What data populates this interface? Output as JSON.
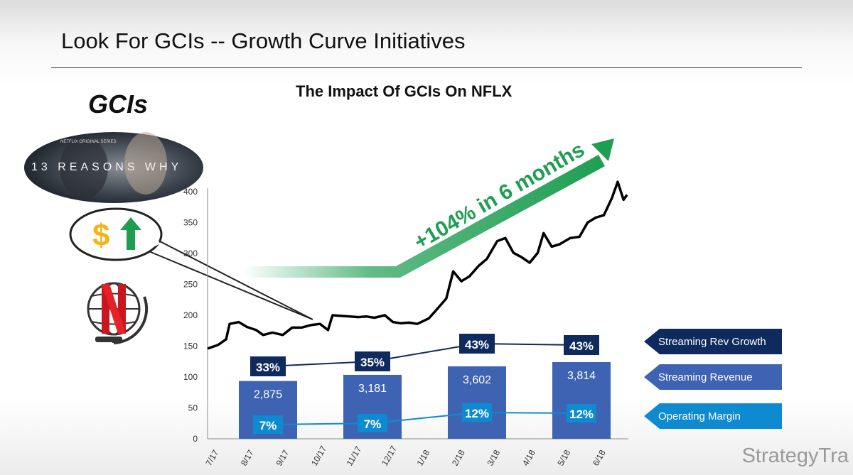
{
  "slide": {
    "title": "Look For GCIs -- Growth Curve Initiatives",
    "side_heading": "GCIs",
    "poster_text": "13 REASONS WHY",
    "poster_top_text": "NETFLIX ORIGINAL SERIES",
    "dollar_sign": "$",
    "logo": "StrategyTra"
  },
  "colors": {
    "green": "#1f9e52",
    "navy": "#0f2a5c",
    "bar_blue": "#3e63b2",
    "cyan": "#0e8bd0",
    "price_line": "#000000"
  },
  "icons": [
    "dollar-icon",
    "up-arrow-icon",
    "netflix-globe-icon"
  ],
  "annotation": "+104% in 6 months",
  "chart_data": {
    "type": "line",
    "title": "The Impact Of GCIs On NFLX",
    "xlabel": "",
    "ylabel": "",
    "x_tick_labels": [
      "7/17",
      "8/17",
      "9/17",
      "10/17",
      "11/17",
      "12/17",
      "1/18",
      "2/18",
      "3/18",
      "4/18",
      "5/18",
      "6/18"
    ],
    "ylim": [
      0,
      400
    ],
    "yticks": [
      0,
      50,
      100,
      150,
      200,
      250,
      300,
      350,
      400
    ],
    "grid": false,
    "series": [
      {
        "values": [
          [
            "7/1/17",
            146
          ],
          [
            "7/10/17",
            152
          ],
          [
            "7/17/17",
            161
          ],
          [
            "7/20/17",
            186
          ],
          [
            "7/28/17",
            189
          ],
          [
            "8/4/17",
            181
          ],
          [
            "8/12/17",
            176
          ],
          [
            "8/18/17",
            168
          ],
          [
            "8/26/17",
            172
          ],
          [
            "9/4/17",
            168
          ],
          [
            "9/12/17",
            180
          ],
          [
            "9/20/17",
            180
          ],
          [
            "9/28/17",
            184
          ],
          [
            "10/6/17",
            186
          ],
          [
            "10/13/17",
            176
          ],
          [
            "10/16/17",
            195
          ],
          [
            "10/17/17",
            200
          ],
          [
            "10/24/17",
            199
          ],
          [
            "11/1/17",
            198
          ],
          [
            "11/8/17",
            197
          ],
          [
            "11/15/17",
            198
          ],
          [
            "11/22/17",
            196
          ],
          [
            "12/1/17",
            200
          ],
          [
            "12/8/17",
            189
          ],
          [
            "12/15/17",
            187
          ],
          [
            "12/22/17",
            188
          ],
          [
            "12/29/17",
            186
          ],
          [
            "1/8/18",
            195
          ],
          [
            "1/16/18",
            212
          ],
          [
            "1/23/18",
            227
          ],
          [
            "1/29/18",
            271
          ],
          [
            "2/5/18",
            255
          ],
          [
            "2/12/18",
            263
          ],
          [
            "2/20/18",
            280
          ],
          [
            "2/27/18",
            291
          ],
          [
            "3/8/18",
            320
          ],
          [
            "3/15/18",
            325
          ],
          [
            "3/22/18",
            301
          ],
          [
            "3/29/18",
            294
          ],
          [
            "4/5/18",
            285
          ],
          [
            "4/12/18",
            301
          ],
          [
            "4/17/18",
            333
          ],
          [
            "4/24/18",
            311
          ],
          [
            "5/1/18",
            315
          ],
          [
            "5/10/18",
            325
          ],
          [
            "5/18/18",
            327
          ],
          [
            "5/25/18",
            350
          ],
          [
            "6/1/18",
            358
          ],
          [
            "6/8/18",
            362
          ],
          [
            "6/15/18",
            390
          ],
          [
            "6/20/18",
            416
          ],
          [
            "6/25/18",
            387
          ],
          [
            "6/28/18",
            395
          ]
        ]
      }
    ],
    "streaming_rev_growth": {
      "label": "Streaming Rev Growth",
      "values": [
        "33%",
        "35%",
        "43%",
        "43%"
      ]
    },
    "streaming_revenue": {
      "label": "Streaming Revenue",
      "values": [
        2875,
        3181,
        3602,
        3814
      ],
      "labels": [
        "2,875",
        "3,181",
        "3,602",
        "3,814"
      ]
    },
    "operating_margin": {
      "label": "Operating Margin",
      "values": [
        "7%",
        "7%",
        "12%",
        "12%"
      ]
    }
  }
}
